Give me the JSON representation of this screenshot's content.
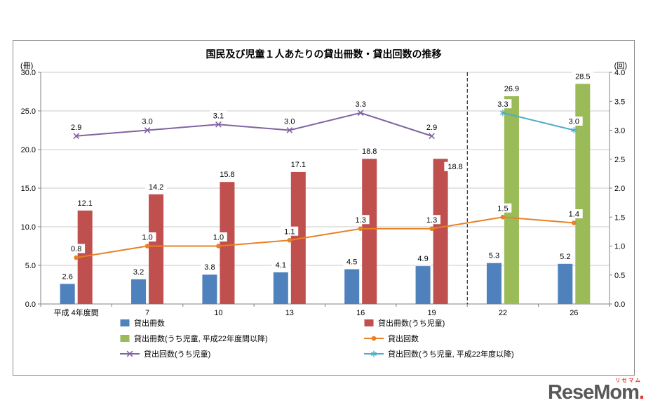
{
  "chart_data": {
    "type": "combo-bar-line",
    "title": "国民及び児童１人あたりの貸出冊数・貸出回数の推移",
    "categories": [
      "平成 4年度間",
      "7",
      "10",
      "13",
      "16",
      "19",
      "22",
      "26"
    ],
    "left_axis": {
      "unit": "(冊)",
      "min": 0,
      "max": 30,
      "step": 5
    },
    "right_axis": {
      "unit": "(回)",
      "min": 0,
      "max": 4,
      "step": 0.5
    },
    "grid": "horizontal",
    "separator_boundary_index": 6,
    "bar_series": [
      {
        "name": "貸出冊数",
        "color": "#4F81BD",
        "axis": "left",
        "slot": 0,
        "values": [
          2.6,
          3.2,
          3.8,
          4.1,
          4.5,
          4.9,
          5.3,
          5.2
        ]
      },
      {
        "name": "貸出冊数(うち児童)",
        "color": "#C0504D",
        "axis": "left",
        "slot": 1,
        "values": [
          12.1,
          14.2,
          15.8,
          17.1,
          18.8,
          18.8,
          null,
          null
        ],
        "label_dx": [
          0,
          0,
          0,
          0,
          0,
          21
        ],
        "label_dy": [
          0,
          0,
          0,
          0,
          0,
          22
        ]
      },
      {
        "name": "貸出冊数(うち児童, 平成22年度間以降)",
        "color": "#9BBB59",
        "axis": "left",
        "slot": 1,
        "values": [
          null,
          null,
          null,
          null,
          null,
          null,
          26.9,
          28.5
        ]
      }
    ],
    "line_series": [
      {
        "name": "貸出回数",
        "color": "#E88125",
        "marker": "circle",
        "axis": "right",
        "values": [
          0.8,
          1.0,
          1.0,
          1.1,
          1.3,
          1.3,
          1.5,
          1.4
        ]
      },
      {
        "name": "貸出回数(うち児童)",
        "color": "#8064A2",
        "marker": "x",
        "axis": "right",
        "values": [
          2.9,
          3.0,
          3.1,
          3.0,
          3.3,
          2.9,
          null,
          null
        ]
      },
      {
        "name": "貸出回数(うち児童, 平成22年度以降)",
        "color": "#4BACC6",
        "marker": "asterisk",
        "axis": "right",
        "values": [
          null,
          null,
          null,
          null,
          null,
          null,
          3.3,
          3.0
        ]
      }
    ],
    "legend": [
      {
        "label": "貸出冊数",
        "color": "#4F81BD",
        "type": "bar"
      },
      {
        "label": "貸出冊数(うち児童)",
        "color": "#C0504D",
        "type": "bar"
      },
      {
        "label": "貸出冊数(うち児童, 平成22年度間以降)",
        "color": "#9BBB59",
        "type": "bar"
      },
      {
        "label": "貸出回数",
        "color": "#E88125",
        "type": "line",
        "marker": "circle"
      },
      {
        "label": "貸出回数(うち児童)",
        "color": "#8064A2",
        "type": "line",
        "marker": "x"
      },
      {
        "label": "貸出回数(うち児童, 平成22年度以降)",
        "color": "#4BACC6",
        "type": "line",
        "marker": "asterisk"
      }
    ],
    "legend_position": "bottom"
  },
  "logo": {
    "text": "ReseMom",
    "dot": ".",
    "sub": "リセマム"
  }
}
